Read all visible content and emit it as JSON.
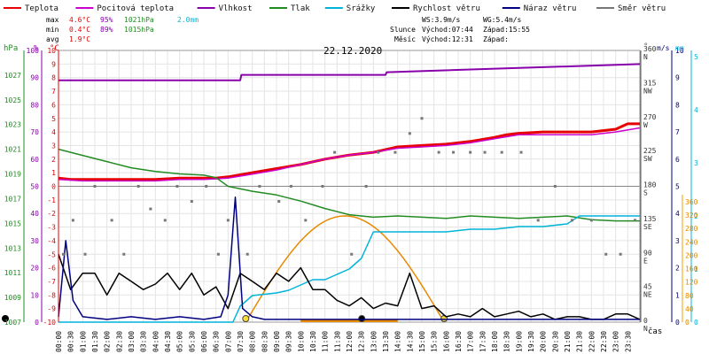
{
  "legend": [
    {
      "label": "Teplota",
      "color": "#e60000"
    },
    {
      "label": "Pocitová teplota",
      "color": "#cc00cc"
    },
    {
      "label": "Vlhkost",
      "color": "#8800aa"
    },
    {
      "label": "Tlak",
      "color": "#228b22"
    },
    {
      "label": "Srážky",
      "color": "#00b4d8"
    },
    {
      "label": "Rychlost větru",
      "color": "#000000"
    },
    {
      "label": "Náraz větru",
      "color": "#000080"
    },
    {
      "label": "Směr větru",
      "color": "#777777"
    }
  ],
  "stats": {
    "max": {
      "label": "max",
      "temp": "4.6°C",
      "hum": "95%",
      "press": "1021hPa",
      "rain": "2.0mm"
    },
    "min": {
      "label": "min",
      "temp": "0.4°C",
      "hum": "89%",
      "press": "1015hPa"
    },
    "avg": {
      "label": "avg",
      "temp": "1.9°C"
    }
  },
  "wind": {
    "ws": "WS:3.9m/s",
    "wg": "WG:5.4m/s"
  },
  "sun": {
    "label": "Slunce",
    "rise": "Východ:07:44",
    "set": "Západ:15:55"
  },
  "moon": {
    "label": "Měsíc",
    "rise": "Východ:12:31",
    "set": "Západ:"
  },
  "date": "22.12.2020",
  "axis_units": {
    "hpa": "hPa",
    "pct": "%",
    "deg": "°C",
    "dir": "°",
    "ms": "m/s",
    "mm": "mm",
    "time": "čas"
  },
  "colors": {
    "bg": "#ffffff",
    "grid": "#e0e0e0",
    "sun": "#f0a000",
    "moon": "#e88a00"
  },
  "chart_data": {
    "type": "line",
    "title": "22.12.2020",
    "x_ticks": [
      "00:00",
      "00:30",
      "01:00",
      "01:30",
      "02:00",
      "02:30",
      "03:00",
      "03:30",
      "04:00",
      "04:30",
      "05:00",
      "05:30",
      "06:00",
      "06:30",
      "07:00",
      "07:30",
      "08:00",
      "08:30",
      "09:00",
      "09:30",
      "10:00",
      "10:30",
      "11:00",
      "11:30",
      "12:00",
      "12:30",
      "13:00",
      "13:30",
      "14:00",
      "14:30",
      "15:00",
      "15:30",
      "16:00",
      "16:30",
      "17:00",
      "17:30",
      "18:00",
      "18:30",
      "19:00",
      "19:30",
      "20:00",
      "20:30",
      "21:00",
      "21:30",
      "22:00",
      "22:30",
      "23:00",
      "23:30"
    ],
    "xlim": [
      0,
      24
    ],
    "axes": {
      "pressure": {
        "unit": "hPa",
        "range": [
          1007,
          1029
        ],
        "ticks": [
          "1007",
          "1009",
          "1011",
          "1013",
          "1015",
          "1017",
          "1019",
          "1021",
          "1023",
          "1025",
          "1027"
        ]
      },
      "humidity": {
        "unit": "%",
        "range": [
          0,
          100
        ],
        "ticks": [
          "0",
          "10",
          "20",
          "30",
          "40",
          "50",
          "60",
          "70",
          "80",
          "90",
          "100"
        ]
      },
      "temperature": {
        "unit": "°C",
        "range": [
          -10,
          10
        ],
        "ticks": [
          "-10",
          "-9",
          "-8",
          "-7",
          "-6",
          "-5",
          "-4",
          "-3",
          "-2",
          "-1",
          "0",
          "1",
          "2",
          "3",
          "4",
          "5",
          "6",
          "7",
          "8",
          "9",
          "10"
        ]
      },
      "direction": {
        "unit": "°",
        "range": [
          0,
          360
        ],
        "ticks": [
          {
            "v": 0,
            "label": "0",
            "dir": "N"
          },
          {
            "v": 45,
            "label": "45",
            "dir": "NE"
          },
          {
            "v": 90,
            "label": "90",
            "dir": "E"
          },
          {
            "v": 135,
            "label": "135",
            "dir": "SE"
          },
          {
            "v": 180,
            "label": "180",
            "dir": "S"
          },
          {
            "v": 225,
            "label": "225",
            "dir": "SW"
          },
          {
            "v": 270,
            "label": "270",
            "dir": "W"
          },
          {
            "v": 315,
            "label": "315",
            "dir": "NW"
          },
          {
            "v": 360,
            "label": "360",
            "dir": "N"
          }
        ]
      },
      "wind": {
        "unit": "m/s",
        "range": [
          0,
          10
        ],
        "ticks": [
          "0",
          "1",
          "2",
          "3",
          "4",
          "5",
          "6",
          "7",
          "8",
          "9",
          "10"
        ]
      },
      "rain_mm": {
        "unit": "mm",
        "range": [
          0,
          2
        ],
        "ticks": [
          "0",
          "1",
          "2",
          "3",
          "4",
          "5"
        ]
      },
      "solar": {
        "range": [
          0,
          360
        ],
        "ticks": [
          "0",
          "40",
          "80",
          "120",
          "160",
          "200",
          "240",
          "280",
          "320",
          "360"
        ]
      }
    },
    "series": [
      {
        "name": "Teplota",
        "axis": "temperature",
        "color": "#e60000",
        "x": [
          0,
          0.5,
          1,
          2,
          3,
          4,
          5,
          6,
          6.5,
          7,
          8,
          9,
          10,
          11,
          12,
          13,
          14,
          15,
          16,
          17,
          18,
          18.5,
          19,
          20,
          21,
          22,
          23,
          23.5,
          24
        ],
        "y": [
          0.6,
          0.5,
          0.5,
          0.5,
          0.5,
          0.5,
          0.6,
          0.6,
          0.6,
          0.7,
          1.0,
          1.3,
          1.6,
          2.0,
          2.3,
          2.5,
          2.9,
          3.0,
          3.1,
          3.3,
          3.6,
          3.8,
          3.9,
          4.0,
          4.0,
          4.0,
          4.2,
          4.6,
          4.6
        ]
      },
      {
        "name": "Pocitová teplota",
        "axis": "temperature",
        "color": "#cc00cc",
        "x": [
          0,
          1,
          2,
          3,
          4,
          5,
          6,
          7,
          8,
          9,
          10,
          11,
          12,
          13,
          14,
          15,
          16,
          17,
          18,
          19,
          20,
          21,
          22,
          23,
          24
        ],
        "y": [
          0.5,
          0.4,
          0.4,
          0.4,
          0.4,
          0.5,
          0.5,
          0.6,
          0.9,
          1.2,
          1.6,
          2.0,
          2.3,
          2.5,
          2.8,
          2.9,
          3.0,
          3.2,
          3.5,
          3.8,
          3.8,
          3.8,
          3.8,
          4.0,
          4.3
        ]
      },
      {
        "name": "Vlhkost",
        "axis": "humidity",
        "color": "#8800aa",
        "x": [
          0,
          7.5,
          7.55,
          13.5,
          13.55,
          24
        ],
        "y": [
          89,
          89,
          91,
          91,
          92,
          95
        ]
      },
      {
        "name": "Tlak",
        "axis": "pressure",
        "color": "#228b22",
        "x": [
          0,
          1,
          2,
          3,
          4,
          5,
          6,
          6.5,
          7,
          8,
          9,
          10,
          11,
          12,
          13,
          14,
          15,
          16,
          17,
          18,
          19,
          20,
          21,
          22,
          23,
          24
        ],
        "y": [
          1021,
          1020.5,
          1020,
          1019.5,
          1019.2,
          1019,
          1018.9,
          1018.7,
          1018,
          1017.6,
          1017.3,
          1016.8,
          1016.2,
          1015.7,
          1015.5,
          1015.6,
          1015.5,
          1015.4,
          1015.6,
          1015.5,
          1015.4,
          1015.5,
          1015.6,
          1015.3,
          1015.2,
          1015.2
        ]
      },
      {
        "name": "Srážky",
        "axis": "rain_mm",
        "color": "#00b4d8",
        "x": [
          0,
          7.2,
          7.5,
          8,
          9,
          9.5,
          10,
          10.5,
          11,
          11.5,
          12,
          12.5,
          13,
          13.5,
          14,
          15,
          16,
          17,
          18,
          19,
          20,
          21,
          21.5,
          22,
          23,
          24
        ],
        "y": [
          0,
          0,
          0.3,
          0.5,
          0.55,
          0.6,
          0.7,
          0.8,
          0.8,
          0.9,
          1.0,
          1.2,
          1.7,
          1.7,
          1.7,
          1.7,
          1.7,
          1.75,
          1.75,
          1.8,
          1.8,
          1.85,
          2.0,
          2.0,
          2.0,
          2.0
        ]
      },
      {
        "name": "Rychlost větru",
        "axis": "wind",
        "color": "#000000",
        "x": [
          0,
          0.5,
          1,
          1.5,
          2,
          2.5,
          3,
          3.5,
          4,
          4.5,
          5,
          5.5,
          6,
          6.5,
          7,
          7.5,
          8,
          8.5,
          9,
          9.5,
          10,
          10.5,
          11,
          11.5,
          12,
          12.5,
          13,
          13.5,
          14,
          14.5,
          15,
          15.5,
          16,
          16.5,
          17,
          17.5,
          18,
          18.5,
          19,
          19.5,
          20,
          20.5,
          21,
          21.5,
          22,
          22.5,
          23,
          23.5,
          24
        ],
        "y": [
          2.5,
          1.2,
          1.8,
          1.8,
          1.0,
          1.8,
          1.5,
          1.2,
          1.4,
          1.8,
          1.2,
          1.8,
          1.0,
          1.3,
          0.5,
          1.8,
          1.5,
          1.2,
          1.8,
          1.5,
          2.0,
          1.2,
          1.2,
          0.8,
          0.6,
          0.9,
          0.5,
          0.7,
          0.6,
          1.8,
          0.5,
          0.6,
          0.2,
          0.3,
          0.2,
          0.5,
          0.2,
          0.3,
          0.4,
          0.2,
          0.3,
          0.1,
          0.2,
          0.2,
          0.1,
          0.1,
          0.3,
          0.3,
          0.1
        ]
      },
      {
        "name": "Náraz větru",
        "axis": "wind",
        "color": "#000080",
        "x": [
          0,
          0.3,
          0.6,
          1,
          2,
          3,
          4,
          5,
          6,
          6.7,
          7,
          7.3,
          7.6,
          8,
          8.5,
          9,
          10,
          11,
          12,
          13,
          14,
          15,
          16,
          17,
          18,
          19,
          20,
          21,
          22,
          23,
          24
        ],
        "y": [
          0.2,
          3.0,
          0.8,
          0.2,
          0.1,
          0.2,
          0.1,
          0.2,
          0.1,
          0.2,
          1.0,
          4.6,
          0.5,
          0.2,
          0.1,
          0.1,
          0.1,
          0.1,
          0.1,
          0.1,
          0.1,
          0.1,
          0.1,
          0.1,
          0.1,
          0.1,
          0.1,
          0.1,
          0.1,
          0.1,
          0.1
        ]
      },
      {
        "name": "Směr větru",
        "axis": "direction",
        "color": "#777777",
        "kind": "scatter",
        "x": [
          0.2,
          0.6,
          1.1,
          1.5,
          2.2,
          2.7,
          3.3,
          3.8,
          4.4,
          4.9,
          5.5,
          6.1,
          6.6,
          7.0,
          7.8,
          8.3,
          9.1,
          9.6,
          10.2,
          10.9,
          11.4,
          12.1,
          12.7,
          13.2,
          13.9,
          14.5,
          15.0,
          15.7,
          16.3,
          17.0,
          17.6,
          18.3,
          19.1,
          19.8,
          20.5,
          21.2,
          22.0,
          22.6,
          23.2,
          23.8
        ],
        "y": [
          90,
          135,
          90,
          180,
          135,
          90,
          180,
          150,
          135,
          180,
          160,
          180,
          90,
          135,
          90,
          180,
          160,
          180,
          135,
          180,
          225,
          90,
          180,
          225,
          225,
          250,
          270,
          225,
          225,
          225,
          225,
          225,
          225,
          135,
          180,
          135,
          135,
          90,
          90,
          135
        ]
      }
    ],
    "annotations": [
      "solar arc",
      "moon arc"
    ]
  }
}
